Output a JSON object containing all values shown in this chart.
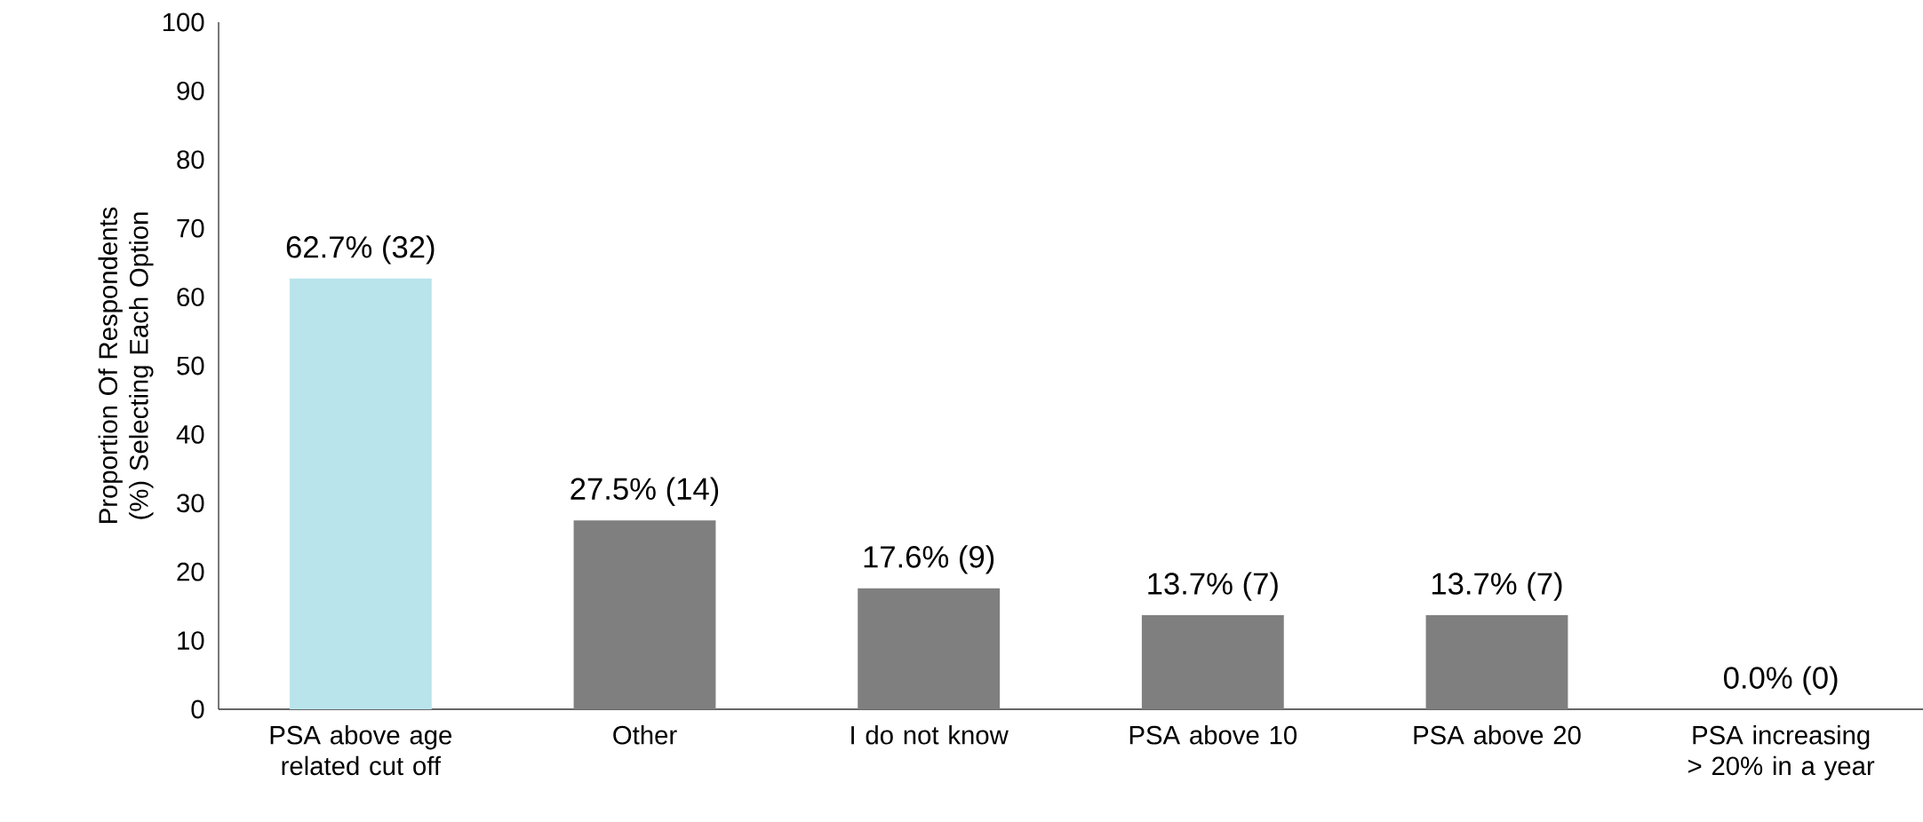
{
  "chart_data": {
    "type": "bar",
    "ylabel": "Proportion Of Respondents (%) Selecting Each Option",
    "categories": [
      "PSA above age related cut off",
      "Other",
      "I do not know",
      "PSA above 10",
      "PSA above 20",
      "PSA increasing > 20% in a year"
    ],
    "values": [
      62.7,
      27.5,
      17.6,
      13.7,
      13.7,
      0.0
    ],
    "colors": [
      "#b9e4ec",
      "#7f7f7f",
      "#7f7f7f",
      "#7f7f7f",
      "#7f7f7f",
      "#7f7f7f"
    ],
    "value_labels": [
      "62.7% (32)",
      "27.5% (14)",
      "17.6% (9)",
      "13.7% (7)",
      "13.7% (7)",
      "0.0% (0)"
    ],
    "ylim": [
      0,
      100
    ],
    "yticks": [
      0,
      10,
      20,
      30,
      40,
      50,
      60,
      70,
      80,
      90,
      100
    ]
  }
}
